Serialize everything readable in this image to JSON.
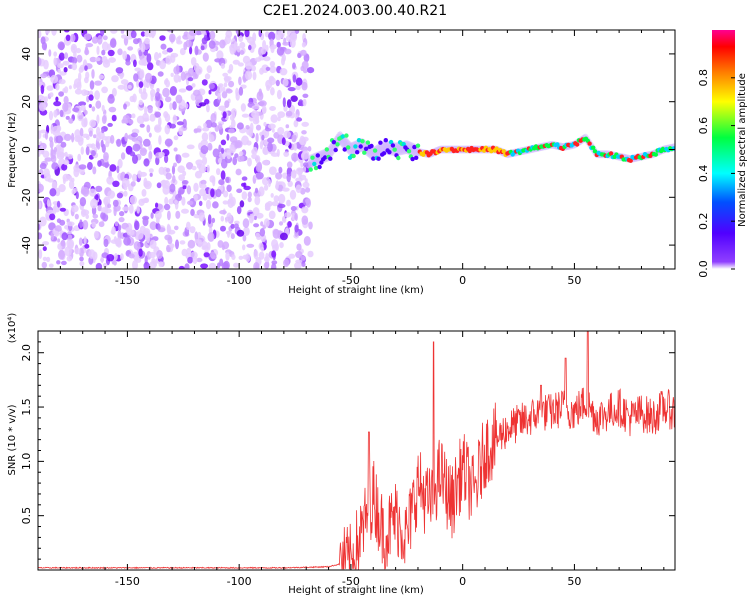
{
  "title": "C2E1.2024.003.00.40.R21",
  "chart_data": [
    {
      "type": "heatmap",
      "xlabel": "Height of straight line (km)",
      "ylabel": "Frequency (Hz)",
      "xlim": [
        -190,
        95
      ],
      "ylim": [
        -50,
        50
      ],
      "xticks": [
        -150,
        -100,
        -50,
        0,
        50
      ],
      "yticks": [
        -40,
        -20,
        0,
        20,
        40
      ],
      "noise_region_x": [
        -190,
        -68
      ],
      "signal_track": {
        "x": [
          -68,
          -60,
          -55,
          -50,
          -45,
          -40,
          -35,
          -30,
          -25,
          -20,
          -15,
          -10,
          -5,
          0,
          5,
          10,
          15,
          20,
          25,
          30,
          35,
          40,
          45,
          50,
          55,
          60,
          65,
          70,
          75,
          80,
          85,
          90,
          95
        ],
        "y": [
          -5,
          -2,
          5,
          0,
          2,
          -2,
          1,
          0,
          1,
          -1,
          -2,
          0,
          0,
          0,
          0,
          0,
          0,
          -2,
          -1,
          0,
          1,
          2,
          1,
          2,
          5,
          -2,
          -2,
          -3,
          -4,
          -3,
          -2,
          0,
          1
        ]
      },
      "colorbar": {
        "label": "Normalized spectral amplitude",
        "range": [
          0,
          1
        ],
        "ticks": [
          "0.0",
          "0.2",
          "0.4",
          "0.6",
          "0.8"
        ],
        "colormap": [
          "#ffffff",
          "#8000ff",
          "#0040ff",
          "#00ffff",
          "#00ff00",
          "#ffff00",
          "#ff8000",
          "#ff0000",
          "#ff0080"
        ]
      }
    },
    {
      "type": "line",
      "xlabel": "Height of straight line (km)",
      "ylabel": "SNR (10 * v/v)",
      "yscale_label": "(x10⁴)",
      "xlim": [
        -190,
        95
      ],
      "ylim": [
        0,
        2.2
      ],
      "xticks": [
        -150,
        -100,
        -50,
        0,
        50
      ],
      "yticks": [
        "0.5",
        "1.0",
        "1.5",
        "2.0"
      ],
      "color": "#ee3333",
      "series": [
        {
          "x": [
            -190,
            -80,
            -60,
            -50,
            -45,
            -40,
            -35,
            -30,
            -25,
            -20,
            -15,
            -10,
            -5,
            0,
            5,
            10,
            15,
            20,
            25,
            30,
            35,
            40,
            45,
            50,
            55,
            60,
            65,
            70,
            75,
            80,
            85,
            90,
            95
          ],
          "y": [
            0.02,
            0.02,
            0.03,
            0.08,
            0.35,
            0.7,
            0.3,
            0.5,
            0.3,
            0.8,
            0.6,
            0.9,
            0.6,
            0.95,
            0.7,
            1.1,
            1.2,
            1.3,
            1.35,
            1.4,
            1.45,
            1.45,
            1.5,
            1.45,
            1.55,
            1.4,
            1.45,
            1.5,
            1.4,
            1.45,
            1.4,
            1.5,
            1.45
          ]
        }
      ],
      "peaks": [
        {
          "x": -42,
          "y": 1.27
        },
        {
          "x": -13,
          "y": 2.1
        },
        {
          "x": 56,
          "y": 2.25
        },
        {
          "x": 46,
          "y": 1.95
        },
        {
          "x": 35,
          "y": 1.7
        }
      ]
    }
  ]
}
